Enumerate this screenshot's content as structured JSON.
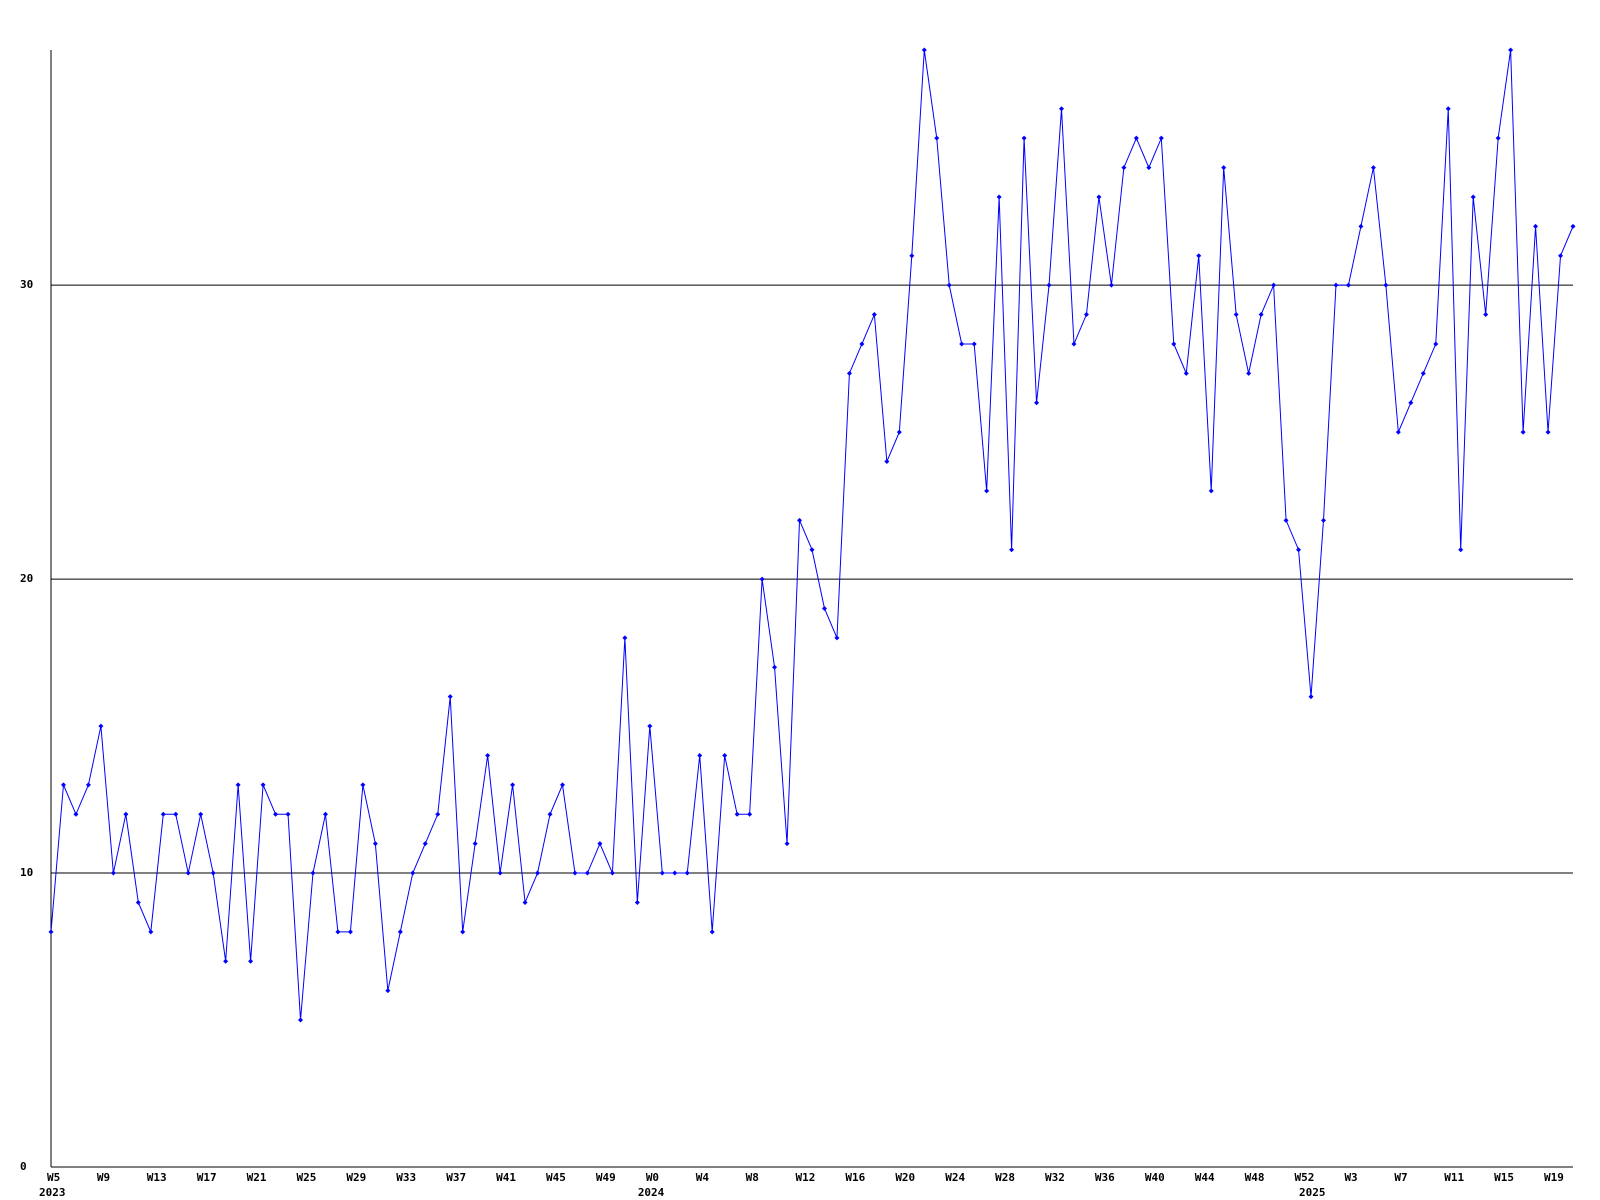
{
  "chart_data": {
    "type": "line",
    "color": "#0000ff",
    "grid": true,
    "ylim": [
      0,
      38
    ],
    "yticks": [
      0,
      10,
      20,
      30
    ],
    "categories": [
      "W5",
      null,
      null,
      null,
      "W9",
      null,
      null,
      null,
      "W13",
      null,
      null,
      null,
      "W17",
      null,
      null,
      null,
      "W21",
      null,
      null,
      null,
      "W25",
      null,
      null,
      null,
      "W29",
      null,
      null,
      null,
      "W33",
      null,
      null,
      null,
      "W37",
      null,
      null,
      null,
      "W41",
      null,
      null,
      null,
      "W45",
      null,
      null,
      null,
      "W49",
      null,
      null,
      null,
      "W0",
      null,
      null,
      null,
      "W4",
      null,
      null,
      null,
      "W8",
      null,
      null,
      null,
      "W12",
      null,
      null,
      null,
      "W16",
      null,
      null,
      null,
      "W20",
      null,
      null,
      null,
      "W24",
      null,
      null,
      null,
      "W28",
      null,
      null,
      null,
      "W32",
      null,
      null,
      null,
      "W36",
      null,
      null,
      null,
      "W40",
      null,
      null,
      null,
      "W44",
      null,
      null,
      null,
      "W48",
      null,
      null,
      null,
      "W52",
      null,
      null,
      null,
      "W3",
      null,
      null,
      null,
      "W7",
      null,
      null,
      null,
      "W11",
      null,
      null,
      null,
      "W15",
      null,
      null,
      null,
      "W19",
      null,
      null
    ],
    "years": [
      "2023",
      null,
      null,
      null,
      null,
      null,
      null,
      null,
      null,
      null,
      null,
      null,
      null,
      null,
      null,
      null,
      null,
      null,
      null,
      null,
      null,
      null,
      null,
      null,
      null,
      null,
      null,
      null,
      null,
      null,
      null,
      null,
      null,
      null,
      null,
      null,
      null,
      null,
      null,
      null,
      null,
      null,
      null,
      null,
      null,
      null,
      null,
      null,
      "2024",
      null,
      null,
      null,
      null,
      null,
      null,
      null,
      null,
      null,
      null,
      null,
      null,
      null,
      null,
      null,
      null,
      null,
      null,
      null,
      null,
      null,
      null,
      null,
      null,
      null,
      null,
      null,
      null,
      null,
      null,
      null,
      null,
      null,
      null,
      null,
      null,
      null,
      null,
      null,
      null,
      null,
      null,
      null,
      null,
      null,
      null,
      null,
      null,
      null,
      null,
      null,
      null,
      "2025",
      null,
      null,
      null,
      null,
      null,
      null,
      null,
      null,
      null,
      null,
      null,
      null,
      null,
      null,
      null,
      null,
      null,
      null,
      null,
      null,
      null
    ],
    "values": [
      8,
      13,
      12,
      13,
      15,
      10,
      12,
      9,
      8,
      12,
      12,
      10,
      12,
      10,
      7,
      13,
      7,
      13,
      12,
      12,
      5,
      10,
      12,
      8,
      8,
      13,
      11,
      6,
      8,
      10,
      11,
      12,
      16,
      8,
      11,
      14,
      10,
      13,
      9,
      10,
      12,
      13,
      10,
      10,
      11,
      10,
      18,
      9,
      15,
      10,
      10,
      10,
      14,
      8,
      14,
      12,
      12,
      20,
      17,
      11,
      22,
      21,
      19,
      18,
      27,
      28,
      29,
      24,
      25,
      31,
      38,
      35,
      30,
      28,
      28,
      23,
      33,
      21,
      35,
      26,
      30,
      36,
      28,
      29,
      33,
      30,
      34,
      35,
      34,
      35,
      28,
      27,
      31,
      23,
      34,
      29,
      27,
      29,
      30,
      22,
      21,
      16,
      22,
      30,
      30,
      32,
      34,
      30,
      25,
      26,
      27,
      28,
      36,
      21,
      33,
      29,
      35,
      38,
      25,
      32,
      25,
      31,
      32
    ]
  }
}
